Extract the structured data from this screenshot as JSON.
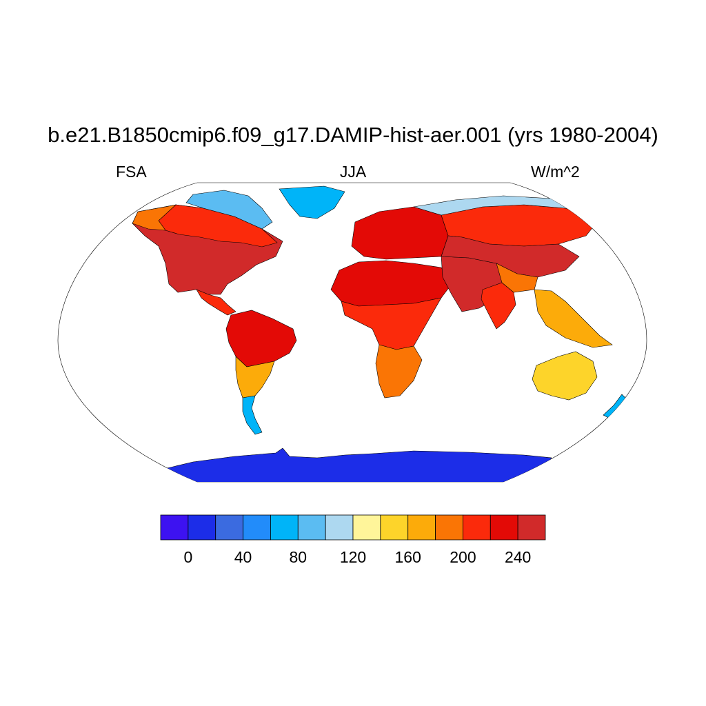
{
  "title": "b.e21.B1850cmip6.f09_g17.DAMIP-hist-aer.001 (yrs 1980-2004)",
  "subtitle_left": "FSA",
  "subtitle_center": "JJA",
  "subtitle_right": "W/m^2",
  "map": {
    "projection": "robinson",
    "field": "absorbed shortwave flux (FSA)",
    "ocean_masked": true,
    "regions": [
      {
        "name": "North America interior",
        "value": 250
      },
      {
        "name": "Canada",
        "value": 205
      },
      {
        "name": "Alaska",
        "value": 185
      },
      {
        "name": "Arctic Canada",
        "value": 90
      },
      {
        "name": "Greenland",
        "value": 70
      },
      {
        "name": "Central America",
        "value": 215
      },
      {
        "name": "Amazon",
        "value": 225
      },
      {
        "name": "Southern South America",
        "value": 175
      },
      {
        "name": "Patagonia",
        "value": 75
      },
      {
        "name": "Sahara",
        "value": 230
      },
      {
        "name": "Central Africa",
        "value": 200
      },
      {
        "name": "Southern Africa",
        "value": 185
      },
      {
        "name": "Europe",
        "value": 230
      },
      {
        "name": "Middle East",
        "value": 250
      },
      {
        "name": "Siberia",
        "value": 210
      },
      {
        "name": "Arctic Siberia",
        "value": 100
      },
      {
        "name": "Central Asia",
        "value": 245
      },
      {
        "name": "Tibetan Plateau",
        "value": 195
      },
      {
        "name": "India",
        "value": 215
      },
      {
        "name": "Southeast Asia",
        "value": 175
      },
      {
        "name": "Australia",
        "value": 145
      },
      {
        "name": "New Zealand",
        "value": 70
      },
      {
        "name": "Antarctica",
        "value": 10
      }
    ]
  },
  "colorbar": {
    "colors": [
      "#3d12f1",
      "#1c2de8",
      "#3b6be0",
      "#228cfa",
      "#00b4f8",
      "#5bbcf2",
      "#add8f0",
      "#fff59a",
      "#fdd42a",
      "#fcab0a",
      "#fa7505",
      "#fb2a0b",
      "#e30a06",
      "#d12a2a"
    ],
    "thresholds": [
      -20,
      0,
      20,
      40,
      60,
      80,
      100,
      120,
      140,
      160,
      180,
      200,
      220,
      240
    ],
    "tick_labels": [
      "0",
      "40",
      "80",
      "120",
      "160",
      "200",
      "240"
    ]
  }
}
